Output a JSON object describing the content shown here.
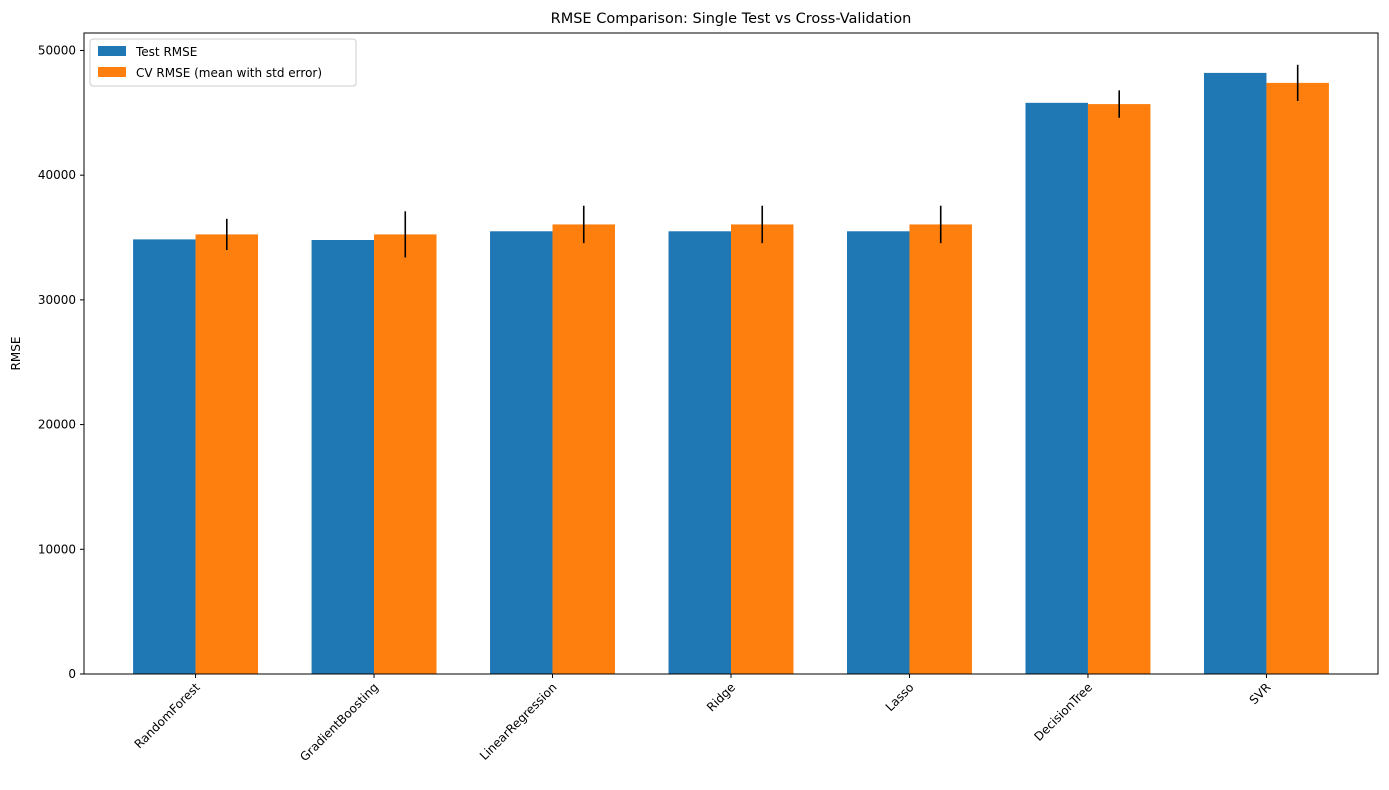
{
  "chart_data": {
    "type": "bar",
    "title": "RMSE Comparison: Single Test vs Cross-Validation",
    "xlabel": "",
    "ylabel": "RMSE",
    "ylim": [
      0,
      51400
    ],
    "yticks": [
      0,
      10000,
      20000,
      30000,
      40000,
      50000
    ],
    "categories": [
      "RandomForest",
      "GradientBoosting",
      "LinearRegression",
      "Ridge",
      "Lasso",
      "DecisionTree",
      "SVR"
    ],
    "series": [
      {
        "name": "Test RMSE",
        "color": "#1f77b4",
        "values": [
          34850,
          34800,
          35500,
          35500,
          35500,
          45800,
          48200
        ]
      },
      {
        "name": "CV RMSE (mean with std error)",
        "color": "#ff7f0e",
        "values": [
          35250,
          35250,
          36050,
          36050,
          36050,
          45700,
          47400
        ],
        "errors": [
          1250,
          1850,
          1500,
          1500,
          1500,
          1100,
          1450
        ]
      }
    ],
    "legend_position": "top-left",
    "grid": false
  }
}
